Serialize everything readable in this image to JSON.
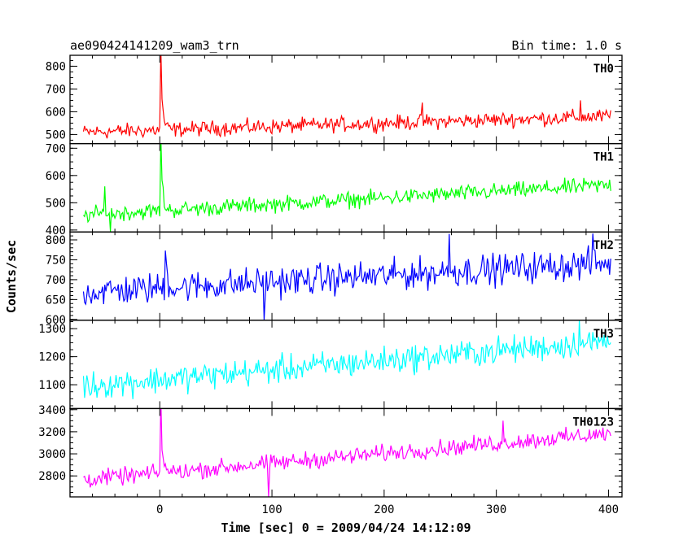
{
  "header": {
    "left_title": "ae090424141209_wam3_trn",
    "right_title": "Bin time: 1.0 s"
  },
  "chart_data": {
    "type": "line",
    "title": "ae090424141209_wam3_trn",
    "subtitle": "Bin time: 1.0 s",
    "xlabel": "Time [sec] 0 = 2009/04/24 14:12:09",
    "ylabel": "Counts/sec",
    "xlim": [
      -80,
      412
    ],
    "x_ticks": [
      0,
      100,
      200,
      300,
      400
    ],
    "x_tick_labels": [
      "0",
      "100",
      "200",
      "300",
      "400"
    ],
    "x_start": -68,
    "x_end": 402,
    "bin_time": 1.0,
    "grid": false,
    "panels": [
      {
        "name": "TH0",
        "color": "#ff0000",
        "ylim": [
          460,
          848
        ],
        "yticks": [
          500,
          600,
          700,
          800
        ],
        "ytick_labels": [
          "500",
          "600",
          "700",
          "800"
        ],
        "baseline_start": 510,
        "baseline_end": 580,
        "noise_amp": 28,
        "burst_peak": 848,
        "burst_time": 1,
        "spikes": [
          [
            234,
            640
          ],
          [
            375,
            650
          ]
        ]
      },
      {
        "name": "TH1",
        "color": "#00ff00",
        "ylim": [
          393,
          717
        ],
        "yticks": [
          400,
          500,
          600,
          700
        ],
        "ytick_labels": [
          "400",
          "500",
          "600",
          "700"
        ],
        "baseline_start": 455,
        "baseline_end": 565,
        "noise_amp": 25,
        "burst_peak": 717,
        "burst_time": 1,
        "spikes": [
          [
            -49,
            560
          ],
          [
            -44,
            395
          ]
        ]
      },
      {
        "name": "TH2",
        "color": "#0000ff",
        "ylim": [
          598,
          820
        ],
        "yticks": [
          600,
          650,
          700,
          750,
          800
        ],
        "ytick_labels": [
          "600",
          "650",
          "700",
          "750",
          "800"
        ],
        "baseline_start": 668,
        "baseline_end": 742,
        "noise_amp": 33,
        "burst_peak": 780,
        "burst_time": 5,
        "spikes": [
          [
            93,
            598
          ],
          [
            258,
            815
          ],
          [
            386,
            816
          ]
        ]
      },
      {
        "name": "TH3",
        "color": "#00ffff",
        "ylim": [
          1015,
          1330
        ],
        "yticks": [
          1100,
          1200,
          1300
        ],
        "ytick_labels": [
          "1100",
          "1200",
          "1300"
        ],
        "baseline_start": 1095,
        "baseline_end": 1255,
        "noise_amp": 42,
        "burst_peak": null,
        "burst_time": null,
        "spikes": [
          [
            374,
            1330
          ]
        ]
      },
      {
        "name": "TH0123",
        "color": "#ff00ff",
        "ylim": [
          2610,
          3410
        ],
        "yticks": [
          2800,
          3000,
          3200,
          3400
        ],
        "ytick_labels": [
          "2800",
          "3000",
          "3200",
          "3400"
        ],
        "baseline_start": 2765,
        "baseline_end": 3185,
        "noise_amp": 65,
        "burst_peak": 3410,
        "burst_time": 1,
        "spikes": [
          [
            97,
            2610
          ],
          [
            306,
            3300
          ]
        ]
      }
    ]
  }
}
